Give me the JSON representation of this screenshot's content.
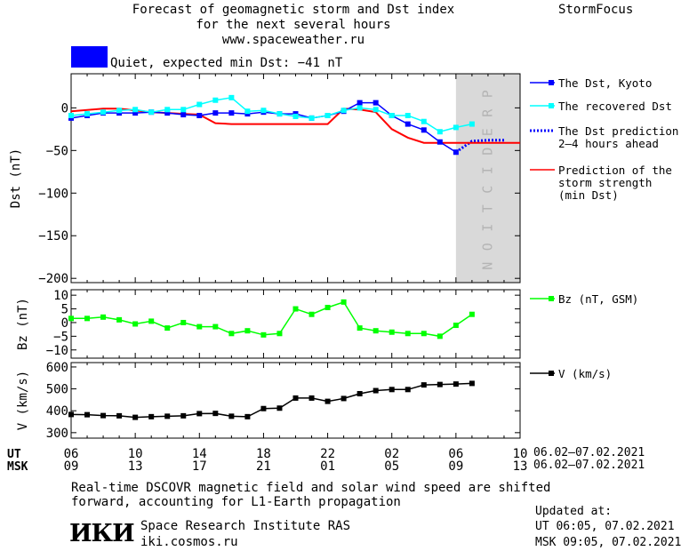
{
  "header": {
    "title_line1": "Forecast of geomagnetic storm and Dst index",
    "title_line2": "for the next several hours",
    "url": "www.spaceweather.ru",
    "brand": "StormFocus"
  },
  "status": {
    "label": "Quiet, expected min Dst: −41 nT",
    "color": "#0000ff"
  },
  "prediction_band_text": "PREDICTION",
  "time_axis": {
    "ut_label": "UT",
    "msk_label": "MSK",
    "ut_ticks": [
      "06",
      "10",
      "14",
      "18",
      "22",
      "02",
      "06",
      "10"
    ],
    "msk_ticks": [
      "09",
      "13",
      "17",
      "21",
      "01",
      "05",
      "09",
      "13"
    ],
    "ut_range": "06.02–07.02.2021",
    "msk_range": "06.02–07.02.2021"
  },
  "footer": {
    "note_line1": "Real-time DSCOVR magnetic field and solar wind speed are shifted",
    "note_line2": "forward, accounting for L1-Earth propagation",
    "logo": "ИКИ",
    "institute": "Space Research Institute RAS",
    "site": "iki.cosmos.ru",
    "updated_label": "Updated at:",
    "updated_ut": "UT   06:05, 07.02.2021",
    "updated_msk": "MSK 09:05, 07.02.2021"
  },
  "chart_data": [
    {
      "type": "line",
      "ylabel": "Dst (nT)",
      "ylim": [
        -205,
        40
      ],
      "xlim": [
        0,
        28
      ],
      "yticks": [
        0,
        -50,
        -100,
        -150,
        -200
      ],
      "prediction_start_hours": 24,
      "series": [
        {
          "name": "The Dst, Kyoto",
          "color": "#0000ff",
          "marker": "square",
          "x": [
            0,
            1,
            2,
            3,
            4,
            5,
            6,
            7,
            8,
            9,
            10,
            11,
            12,
            13,
            14,
            15,
            16,
            17,
            18,
            19,
            20,
            21,
            22,
            23,
            24
          ],
          "y": [
            -12,
            -9,
            -6,
            -6,
            -6,
            -5,
            -6,
            -8,
            -9,
            -6,
            -6,
            -7,
            -5,
            -7,
            -7,
            -12,
            -9,
            -4,
            6,
            6,
            -9,
            -19,
            -26,
            -40,
            -52
          ]
        },
        {
          "name": "The recovered Dst",
          "color": "#00ffff",
          "marker": "square",
          "x": [
            0,
            1,
            2,
            3,
            4,
            5,
            6,
            7,
            8,
            9,
            10,
            11,
            12,
            13,
            14,
            15,
            16,
            17,
            18,
            19,
            20,
            21,
            22,
            23,
            24,
            25
          ],
          "y": [
            -9,
            -7,
            -5,
            -3,
            -2,
            -5,
            -2,
            -2,
            4,
            9,
            12,
            -4,
            -3,
            -7,
            -10,
            -12,
            -9,
            -3,
            0,
            -2,
            -9,
            -9,
            -16,
            -28,
            -23,
            -19
          ]
        },
        {
          "name": "The Dst prediction 2–4 hours ahead",
          "color": "#0000ff",
          "dotted": true,
          "x": [
            24,
            25,
            26,
            27
          ],
          "y": [
            -52,
            -39,
            -38,
            -38
          ]
        },
        {
          "name": "Prediction of the storm strength (min Dst)",
          "color": "#ff0000",
          "x": [
            0,
            2,
            3,
            5,
            6,
            7,
            8,
            9,
            10,
            11,
            12,
            13,
            14,
            15,
            16,
            17,
            18,
            19,
            20,
            21,
            22,
            23,
            24,
            25,
            26,
            27,
            28
          ],
          "y": [
            -4,
            -1,
            -1,
            -5,
            -6,
            -7,
            -8,
            -18,
            -19,
            -19,
            -19,
            -19,
            -19,
            -19,
            -19,
            -1,
            -2,
            -5,
            -25,
            -35,
            -41,
            -41,
            -41,
            -41,
            -41,
            -41,
            -41
          ]
        }
      ]
    },
    {
      "type": "line",
      "ylabel": "Bz (nT)",
      "ylim": [
        -13,
        12
      ],
      "yticks": [
        10,
        5,
        0,
        -5,
        -10
      ],
      "series": [
        {
          "name": "Bz (nT, GSM)",
          "color": "#00ff00",
          "marker": "square",
          "x": [
            0,
            1,
            2,
            3,
            4,
            5,
            6,
            7,
            8,
            9,
            10,
            11,
            12,
            13,
            14,
            15,
            16,
            17,
            18,
            19,
            20,
            21,
            22,
            23,
            24,
            25
          ],
          "y": [
            1.5,
            1.5,
            2,
            1,
            -0.5,
            0.5,
            -2,
            0,
            -1.5,
            -1.5,
            -4,
            -3,
            -4.5,
            -4,
            5,
            3,
            5.5,
            7.5,
            -2,
            -3,
            -3.5,
            -4,
            -4,
            -5,
            -1,
            3
          ]
        }
      ]
    },
    {
      "type": "line",
      "ylabel": "V (km/s)",
      "ylim": [
        275,
        620
      ],
      "yticks": [
        600,
        500,
        400,
        300
      ],
      "series": [
        {
          "name": "V (km/s)",
          "color": "#000000",
          "marker": "square",
          "x": [
            0,
            1,
            2,
            3,
            4,
            5,
            6,
            7,
            8,
            9,
            10,
            11,
            12,
            13,
            14,
            15,
            16,
            17,
            18,
            19,
            20,
            21,
            22,
            23,
            24,
            25
          ],
          "y": [
            383,
            382,
            378,
            377,
            370,
            373,
            375,
            377,
            387,
            388,
            375,
            373,
            410,
            412,
            458,
            458,
            443,
            456,
            478,
            492,
            497,
            497,
            518,
            520,
            522,
            525
          ]
        }
      ]
    }
  ]
}
